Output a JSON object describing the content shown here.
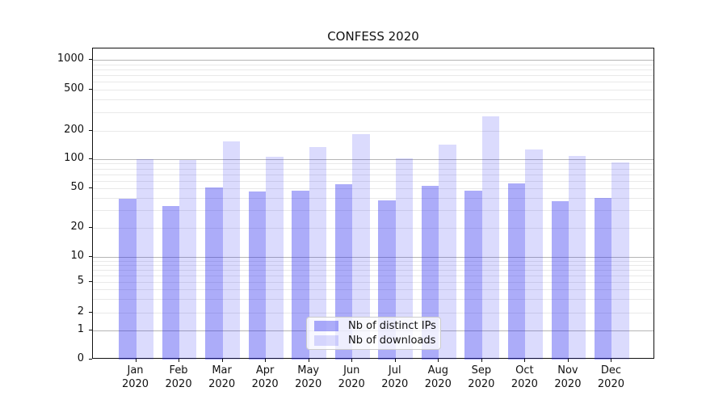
{
  "title": "CONFESS 2020",
  "chart_data": {
    "type": "bar",
    "title": "CONFESS 2020",
    "categories": [
      "Jan",
      "Feb",
      "Mar",
      "Apr",
      "May",
      "Jun",
      "Jul",
      "Aug",
      "Sep",
      "Oct",
      "Nov",
      "Dec"
    ],
    "category_year": "2020",
    "series": [
      {
        "name": "Nb of distinct IPs",
        "color": "rgba(30,30,240,0.37)",
        "values": [
          39,
          33,
          51,
          46,
          47,
          55,
          38,
          53,
          47,
          56,
          37,
          40
        ]
      },
      {
        "name": "Nb of downloads",
        "color": "rgba(30,30,240,0.16)",
        "values": [
          100,
          99,
          156,
          107,
          135,
          184,
          102,
          143,
          275,
          128,
          109,
          93
        ]
      }
    ],
    "yscale": "symlog",
    "yticks": [
      0,
      1,
      2,
      5,
      10,
      20,
      50,
      100,
      200,
      500,
      1000
    ],
    "ylim": [
      0,
      1300
    ],
    "grid": true,
    "legend_position": "lower center"
  },
  "colors": {
    "grid_major": "#b5b5b5",
    "grid_minor": "#e9e9e9",
    "axis": "#111111",
    "text": "#111111",
    "legend_border": "#cccccc",
    "legend_bg": "rgba(255,255,255,0.8)"
  }
}
